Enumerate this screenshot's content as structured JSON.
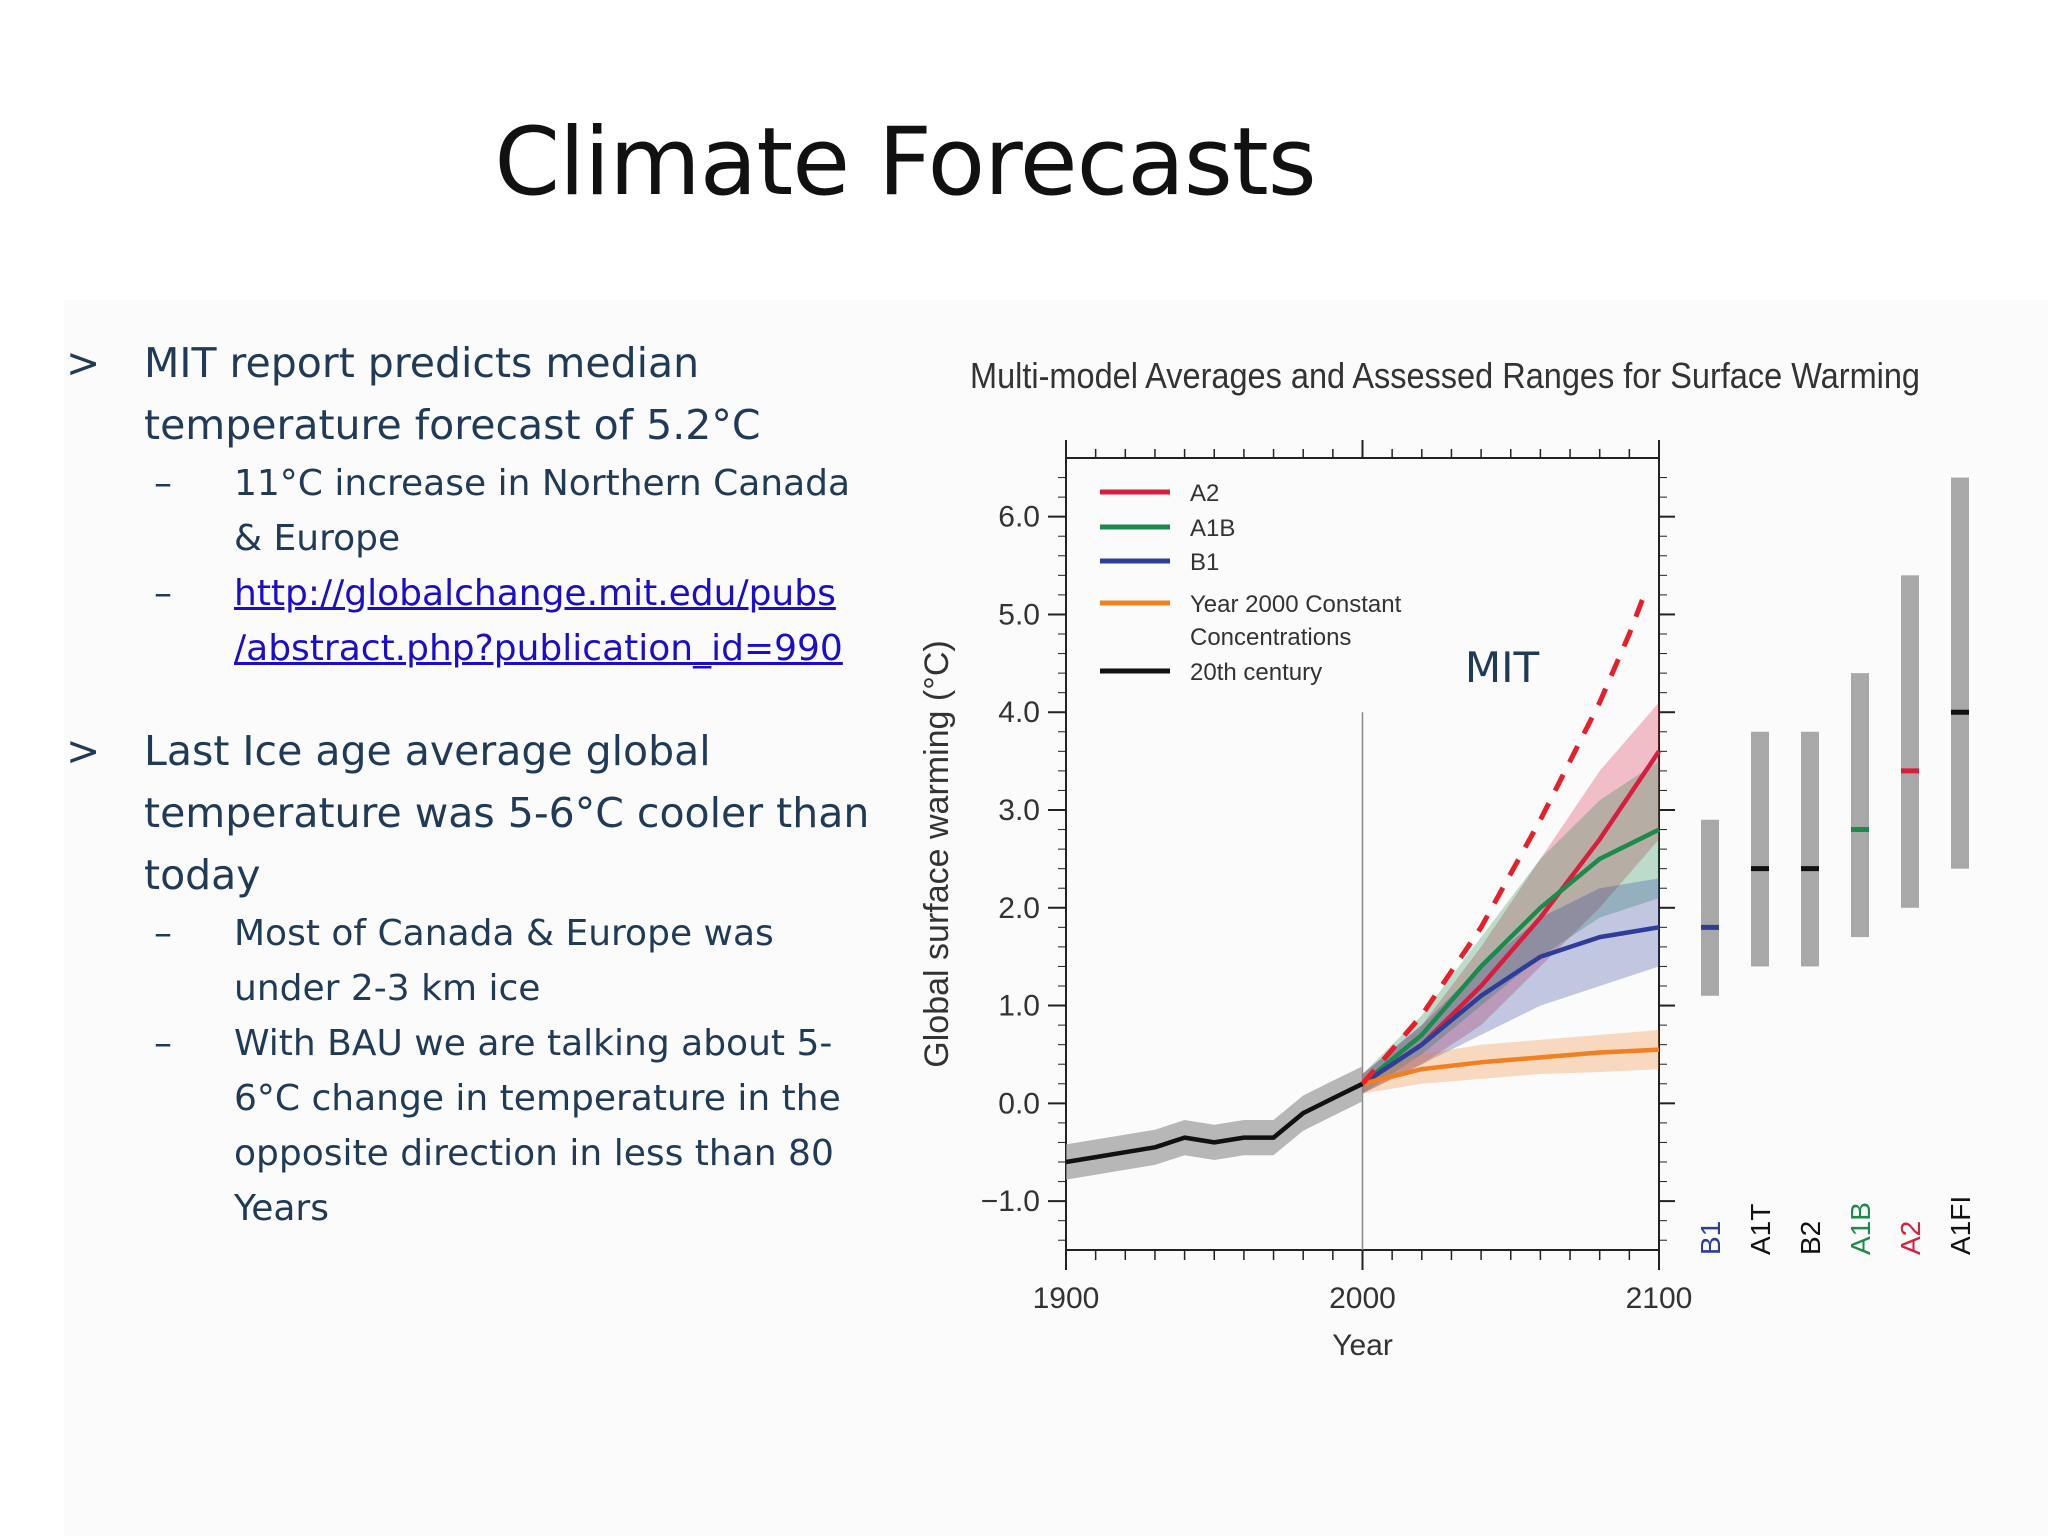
{
  "slide": {
    "title": "Climate Forecasts",
    "bullets": [
      {
        "marker": ">",
        "text": "MIT report predicts median temperature forecast of 5.2°C",
        "subs": [
          {
            "marker": "–",
            "text": "11°C increase in Northern Canada & Europe"
          },
          {
            "marker": "–",
            "link_line1": "http://globalchange.mit.edu/pubs",
            "link_line2": "/abstract.php?publication_id=990"
          }
        ]
      },
      {
        "marker": ">",
        "text": "Last Ice age average global temperature was 5-6°C cooler than today",
        "subs": [
          {
            "marker": "–",
            "text": "Most of Canada & Europe was under 2-3 km ice"
          },
          {
            "marker": "–",
            "text": "With BAU we are talking about 5-6°C change in temperature in the opposite direction in less than 80 Years"
          }
        ]
      }
    ]
  },
  "chart_data": {
    "type": "line",
    "title": "Multi-model Averages and Assessed Ranges for Surface Warming",
    "xlabel": "Year",
    "ylabel": "Global surface warming (°C)",
    "xlim": [
      1900,
      2100
    ],
    "ylim": [
      -1.5,
      6.6
    ],
    "xticks": [
      "1900",
      "2000",
      "2100"
    ],
    "yticks": [
      "-1.0",
      "0.0",
      "1.0",
      "2.0",
      "3.0",
      "4.0",
      "5.0",
      "6.0"
    ],
    "legend_position": "top-left",
    "series": [
      {
        "name": "A2",
        "color": "#d81e3c",
        "points": [
          [
            2000,
            0.2
          ],
          [
            2020,
            0.6
          ],
          [
            2040,
            1.2
          ],
          [
            2060,
            1.9
          ],
          [
            2080,
            2.7
          ],
          [
            2100,
            3.6
          ]
        ],
        "band_low": [
          0.1,
          0.4,
          0.8,
          1.4,
          2.0,
          2.7
        ],
        "band_high": [
          0.3,
          0.8,
          1.6,
          2.5,
          3.4,
          4.1
        ]
      },
      {
        "name": "A1B",
        "color": "#1c8a4a",
        "points": [
          [
            2000,
            0.2
          ],
          [
            2020,
            0.7
          ],
          [
            2040,
            1.4
          ],
          [
            2060,
            2.0
          ],
          [
            2080,
            2.5
          ],
          [
            2100,
            2.8
          ]
        ],
        "band_low": [
          0.1,
          0.5,
          1.0,
          1.5,
          1.9,
          2.1
        ],
        "band_high": [
          0.3,
          0.9,
          1.7,
          2.5,
          3.1,
          3.5
        ]
      },
      {
        "name": "B1",
        "color": "#2c3e99",
        "points": [
          [
            2000,
            0.2
          ],
          [
            2020,
            0.6
          ],
          [
            2040,
            1.1
          ],
          [
            2060,
            1.5
          ],
          [
            2080,
            1.7
          ],
          [
            2100,
            1.8
          ]
        ],
        "band_low": [
          0.1,
          0.4,
          0.7,
          1.0,
          1.2,
          1.4
        ],
        "band_high": [
          0.3,
          0.8,
          1.4,
          1.9,
          2.2,
          2.3
        ]
      },
      {
        "name": "Year 2000 Constant Concentrations",
        "color": "#f08020",
        "points": [
          [
            2000,
            0.2
          ],
          [
            2020,
            0.35
          ],
          [
            2040,
            0.42
          ],
          [
            2060,
            0.47
          ],
          [
            2080,
            0.52
          ],
          [
            2100,
            0.55
          ]
        ],
        "band_low": [
          0.1,
          0.2,
          0.25,
          0.3,
          0.32,
          0.35
        ],
        "band_high": [
          0.3,
          0.5,
          0.6,
          0.65,
          0.7,
          0.75
        ]
      },
      {
        "name": "20th century",
        "color": "#111111",
        "points": [
          [
            1900,
            -0.6
          ],
          [
            1910,
            -0.55
          ],
          [
            1920,
            -0.5
          ],
          [
            1930,
            -0.45
          ],
          [
            1940,
            -0.35
          ],
          [
            1950,
            -0.4
          ],
          [
            1960,
            -0.35
          ],
          [
            1970,
            -0.35
          ],
          [
            1980,
            -0.1
          ],
          [
            1990,
            0.05
          ],
          [
            2000,
            0.2
          ]
        ]
      }
    ],
    "scenario_ranges": [
      {
        "name": "B1",
        "color": "#2c3e99",
        "low": 1.1,
        "high": 2.9,
        "best": 1.8
      },
      {
        "name": "A1T",
        "color": "#111111",
        "low": 1.4,
        "high": 3.8,
        "best": 2.4
      },
      {
        "name": "B2",
        "color": "#111111",
        "low": 1.4,
        "high": 3.8,
        "best": 2.4
      },
      {
        "name": "A1B",
        "color": "#1c8a4a",
        "low": 1.7,
        "high": 4.4,
        "best": 2.8
      },
      {
        "name": "A2",
        "color": "#d81e3c",
        "low": 2.0,
        "high": 5.4,
        "best": 3.4
      },
      {
        "name": "A1FI",
        "color": "#111111",
        "low": 2.4,
        "high": 6.4,
        "best": 4.0
      }
    ],
    "annotation": {
      "label": "MIT",
      "color": "#e5202a",
      "points": [
        [
          2000,
          0.2
        ],
        [
          2020,
          0.9
        ],
        [
          2040,
          1.8
        ],
        [
          2060,
          2.9
        ],
        [
          2080,
          4.1
        ],
        [
          2090,
          4.8
        ],
        [
          2095,
          5.2
        ]
      ]
    }
  }
}
